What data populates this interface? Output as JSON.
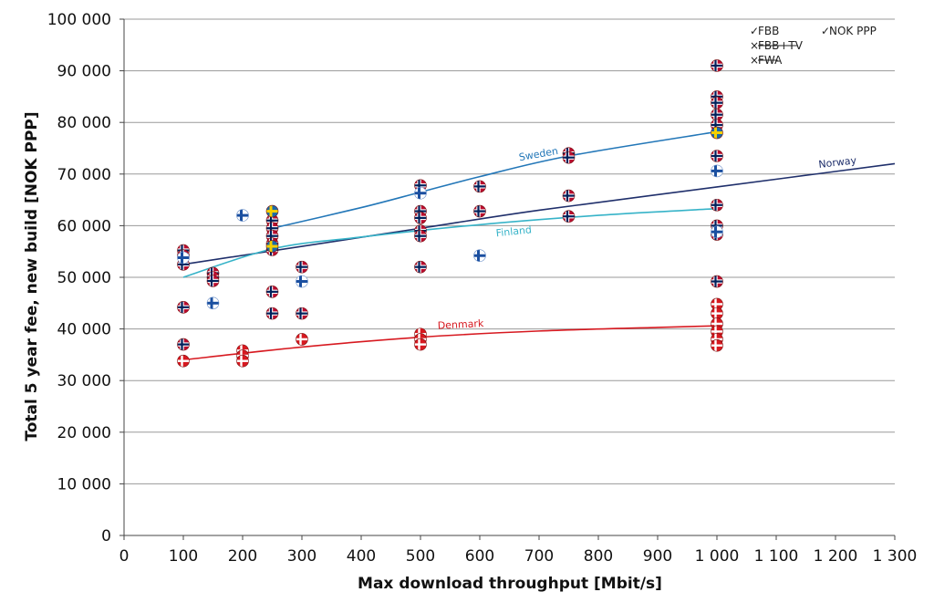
{
  "chart_data": {
    "type": "scatter",
    "title": "",
    "xlabel": "Max download throughput [Mbit/s]",
    "ylabel": "Total 5 year fee, new build [NOK PPP]",
    "xlim": [
      0,
      1300
    ],
    "ylim": [
      0,
      100000
    ],
    "x_ticks": [
      0,
      100,
      200,
      300,
      400,
      500,
      600,
      700,
      800,
      900,
      1000,
      1100,
      1200,
      1300
    ],
    "x_tick_labels": [
      "0",
      "100",
      "200",
      "300",
      "400",
      "500",
      "600",
      "700",
      "800",
      "900",
      "1 000",
      "1 100",
      "1 200",
      "1 300"
    ],
    "y_ticks": [
      0,
      10000,
      20000,
      30000,
      40000,
      50000,
      60000,
      70000,
      80000,
      90000,
      100000
    ],
    "y_tick_labels": [
      "0",
      "10 000",
      "20 000",
      "30 000",
      "40 000",
      "50 000",
      "60 000",
      "70 000",
      "80 000",
      "90 000",
      "100 000"
    ],
    "grid": "horizontal",
    "legend": {
      "position": "top-right",
      "items": [
        {
          "mark": "✓",
          "label": "FBB",
          "struck": false
        },
        {
          "mark": "✓",
          "label": "NOK PPP",
          "struck": false
        },
        {
          "mark": "×",
          "label": "FBB+TV",
          "struck": true
        },
        {
          "mark": "×",
          "label": "FWA",
          "struck": true
        }
      ]
    },
    "series": [
      {
        "name": "Norway",
        "color": "#1f2f6b",
        "flag": "norway-flag-icon",
        "points": [
          [
            100,
            55200
          ],
          [
            100,
            54200
          ],
          [
            100,
            52500
          ],
          [
            100,
            44200
          ],
          [
            100,
            37000
          ],
          [
            150,
            50800
          ],
          [
            150,
            50000
          ],
          [
            150,
            49300
          ],
          [
            250,
            61000
          ],
          [
            250,
            59500
          ],
          [
            250,
            58000
          ],
          [
            250,
            56500
          ],
          [
            250,
            55300
          ],
          [
            250,
            47200
          ],
          [
            250,
            43000
          ],
          [
            300,
            52000
          ],
          [
            300,
            43000
          ],
          [
            500,
            67800
          ],
          [
            500,
            62800
          ],
          [
            500,
            61500
          ],
          [
            500,
            59000
          ],
          [
            500,
            58000
          ],
          [
            500,
            52000
          ],
          [
            600,
            67600
          ],
          [
            600,
            62800
          ],
          [
            750,
            74000
          ],
          [
            750,
            73200
          ],
          [
            750,
            65800
          ],
          [
            750,
            61800
          ],
          [
            1000,
            91000
          ],
          [
            1000,
            85000
          ],
          [
            1000,
            83800
          ],
          [
            1000,
            81500
          ],
          [
            1000,
            79500
          ],
          [
            1000,
            73500
          ],
          [
            1000,
            64000
          ],
          [
            1000,
            60000
          ],
          [
            1000,
            58300
          ],
          [
            1000,
            49200
          ]
        ],
        "trend": {
          "label": "Norway",
          "points": [
            [
              100,
              52500
            ],
            [
              300,
              56000
            ],
            [
              500,
              59500
            ],
            [
              700,
              63000
            ],
            [
              1000,
              67500
            ],
            [
              1300,
              72000
            ]
          ]
        }
      },
      {
        "name": "Sweden",
        "color": "#2377b8",
        "flag": "sweden-flag-icon",
        "points": [
          [
            250,
            62800
          ],
          [
            250,
            56000
          ],
          [
            1000,
            78000
          ]
        ],
        "trend": {
          "label": "Sweden",
          "points": [
            [
              250,
              59500
            ],
            [
              400,
              63500
            ],
            [
              500,
              66500
            ],
            [
              600,
              69500
            ],
            [
              750,
              73500
            ],
            [
              1000,
              78200
            ]
          ]
        }
      },
      {
        "name": "Finland",
        "color": "#36b3c8",
        "flag": "finland-flag-icon",
        "points": [
          [
            100,
            53800
          ],
          [
            150,
            45000
          ],
          [
            200,
            62000
          ],
          [
            300,
            49200
          ],
          [
            500,
            66300
          ],
          [
            600,
            54200
          ],
          [
            1000,
            70600
          ],
          [
            1000,
            58800
          ]
        ],
        "trend": {
          "label": "Finland",
          "points": [
            [
              100,
              50000
            ],
            [
              250,
              55500
            ],
            [
              400,
              57800
            ],
            [
              600,
              60200
            ],
            [
              800,
              62000
            ],
            [
              1000,
              63300
            ]
          ]
        }
      },
      {
        "name": "Denmark",
        "color": "#d71920",
        "flag": "denmark-flag-icon",
        "points": [
          [
            100,
            33800
          ],
          [
            200,
            35800
          ],
          [
            200,
            34800
          ],
          [
            200,
            33800
          ],
          [
            300,
            38000
          ],
          [
            500,
            39000
          ],
          [
            500,
            38000
          ],
          [
            500,
            37000
          ],
          [
            1000,
            44800
          ],
          [
            1000,
            43000
          ],
          [
            1000,
            41000
          ],
          [
            1000,
            39500
          ],
          [
            1000,
            38000
          ],
          [
            1000,
            36800
          ]
        ],
        "trend": {
          "label": "Denmark",
          "points": [
            [
              100,
              34000
            ],
            [
              300,
              36500
            ],
            [
              500,
              38400
            ],
            [
              700,
              39600
            ],
            [
              900,
              40300
            ],
            [
              1000,
              40600
            ]
          ]
        }
      }
    ]
  }
}
